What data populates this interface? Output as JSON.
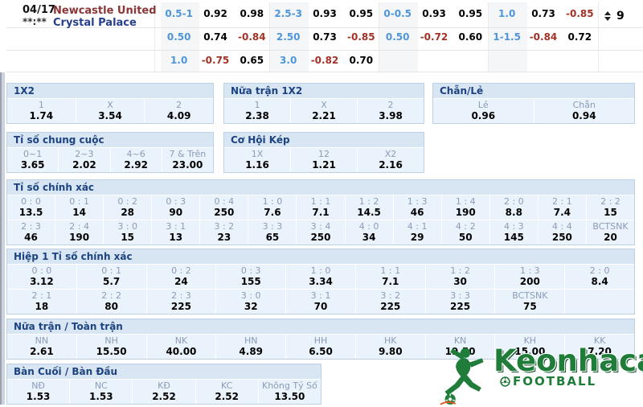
{
  "page": {
    "dots": "···"
  },
  "match": {
    "date": "04/17",
    "time": "**:**",
    "home": "Newcastle United",
    "away": "Crystal Palace",
    "bookmaker_count": "9",
    "odds_rows": [
      [
        [
          "0.5-1",
          "0.92",
          "0.98"
        ],
        [
          "2.5-3",
          "0.93",
          "0.95"
        ],
        [
          "0-0.5",
          "0.93",
          "0.95"
        ],
        [
          "1.0",
          "0.73",
          "-0.85"
        ]
      ],
      [
        [
          "0.50",
          "0.74",
          "-0.84"
        ],
        [
          "2.50",
          "0.73",
          "-0.85"
        ],
        [
          "0.50",
          "-0.72",
          "0.60"
        ],
        [
          "1-1.5",
          "-0.84",
          "0.72"
        ]
      ],
      [
        [
          "1.0",
          "-0.75",
          "0.65"
        ],
        [
          "3.0",
          "-0.82",
          "0.70"
        ],
        [
          "",
          "",
          ""
        ],
        [
          "",
          "",
          ""
        ]
      ]
    ]
  },
  "sections": [
    {
      "title": "1X2",
      "rows": [
        [
          [
            "1",
            "1.74"
          ],
          [
            "X",
            "3.54"
          ],
          [
            "2",
            "4.09"
          ]
        ]
      ]
    },
    {
      "title": "Nữa trận 1X2",
      "rows": [
        [
          [
            "1",
            "2.38"
          ],
          [
            "X",
            "2.21"
          ],
          [
            "2",
            "3.98"
          ]
        ]
      ]
    },
    {
      "title": "Chẵn/Lẻ",
      "rows": [
        [
          [
            "Lẻ",
            "0.96"
          ],
          [
            "Chẵn",
            "0.94"
          ]
        ]
      ]
    },
    {
      "title": "Tỉ số chung cuộc",
      "rows": [
        [
          [
            "0~1",
            "3.65"
          ],
          [
            "2~3",
            "2.02"
          ],
          [
            "4~6",
            "2.92"
          ],
          [
            "7 & Trên",
            "23.00"
          ]
        ]
      ]
    },
    {
      "title": "Cơ Hội Kép",
      "rows": [
        [
          [
            "1X",
            "1.16"
          ],
          [
            "12",
            "1.21"
          ],
          [
            "X2",
            "2.16"
          ]
        ]
      ]
    },
    {
      "title": "Tỉ số chính xác",
      "rows": [
        [
          [
            "0 : 0",
            "13.5"
          ],
          [
            "0 : 1",
            "14"
          ],
          [
            "0 : 2",
            "28"
          ],
          [
            "0 : 3",
            "90"
          ],
          [
            "0 : 4",
            "250"
          ],
          [
            "1 : 0",
            "7.6"
          ],
          [
            "1 : 1",
            "7.1"
          ],
          [
            "1 : 2",
            "14.5"
          ],
          [
            "1 : 3",
            "46"
          ],
          [
            "1 : 4",
            "190"
          ],
          [
            "2 : 0",
            "8.8"
          ],
          [
            "2 : 1",
            "7.4"
          ],
          [
            "2 : 2",
            "15"
          ]
        ],
        [
          [
            "2 : 3",
            "46"
          ],
          [
            "2 : 4",
            "190"
          ],
          [
            "3 : 0",
            "15"
          ],
          [
            "3 : 1",
            "13"
          ],
          [
            "3 : 2",
            "23"
          ],
          [
            "3 : 3",
            "65"
          ],
          [
            "3 : 4",
            "250"
          ],
          [
            "4 : 0",
            "34"
          ],
          [
            "4 : 1",
            "29"
          ],
          [
            "4 : 2",
            "50"
          ],
          [
            "4 : 3",
            "145"
          ],
          [
            "4 : 4",
            "250"
          ],
          [
            "BCTSNK",
            "20"
          ]
        ]
      ]
    },
    {
      "title": "Hiệp 1 Tỉ số chính xác",
      "rows": [
        [
          [
            "0 : 0",
            "3.12"
          ],
          [
            "0 : 1",
            "5.7"
          ],
          [
            "0 : 2",
            "24"
          ],
          [
            "0 : 3",
            "155"
          ],
          [
            "1 : 0",
            "3.34"
          ],
          [
            "1 : 1",
            "7.1"
          ],
          [
            "1 : 2",
            "30"
          ],
          [
            "1 : 3",
            "200"
          ],
          [
            "2 : 0",
            "8.4"
          ]
        ],
        [
          [
            "2 : 1",
            "18"
          ],
          [
            "2 : 2",
            "80"
          ],
          [
            "2 : 3",
            "225"
          ],
          [
            "3 : 0",
            "32"
          ],
          [
            "3 : 1",
            "70"
          ],
          [
            "3 : 2",
            "225"
          ],
          [
            "3 : 3",
            "225"
          ],
          [
            "BCTSNK",
            "75"
          ],
          [
            "",
            ""
          ]
        ]
      ]
    },
    {
      "title": "Nữa trận / Toàn trận",
      "rows": [
        [
          [
            "NN",
            "2.61"
          ],
          [
            "NH",
            "15.50"
          ],
          [
            "NK",
            "40.00"
          ],
          [
            "HN",
            "4.89"
          ],
          [
            "HH",
            "6.50"
          ],
          [
            "HK",
            "9.80"
          ],
          [
            "KN",
            "19.50"
          ],
          [
            "KH",
            "15.00"
          ],
          [
            "KK",
            "7.20"
          ]
        ]
      ]
    },
    {
      "title": "Bàn Cuối / Bàn Đầu",
      "rows": [
        [
          [
            "NĐ",
            "1.53"
          ],
          [
            "NC",
            "1.53"
          ],
          [
            "KĐ",
            "2.52"
          ],
          [
            "KC",
            "2.52"
          ],
          [
            "Không Tỷ Số",
            "13.50"
          ]
        ]
      ]
    }
  ],
  "logo": {
    "brand": "Keonhacai",
    "sub": "FOOTBALL"
  },
  "colors": {
    "handicap_blue": "#4e96d9",
    "negative_red": "#a33226",
    "section_header_text": "#1c4380",
    "section_header_bg": "#d8e5f3",
    "cell_bg": "#eaf2fb",
    "home_team_red": "#8b3535",
    "away_team_navy": "#27408b",
    "logo_green": "#1f7c39"
  }
}
